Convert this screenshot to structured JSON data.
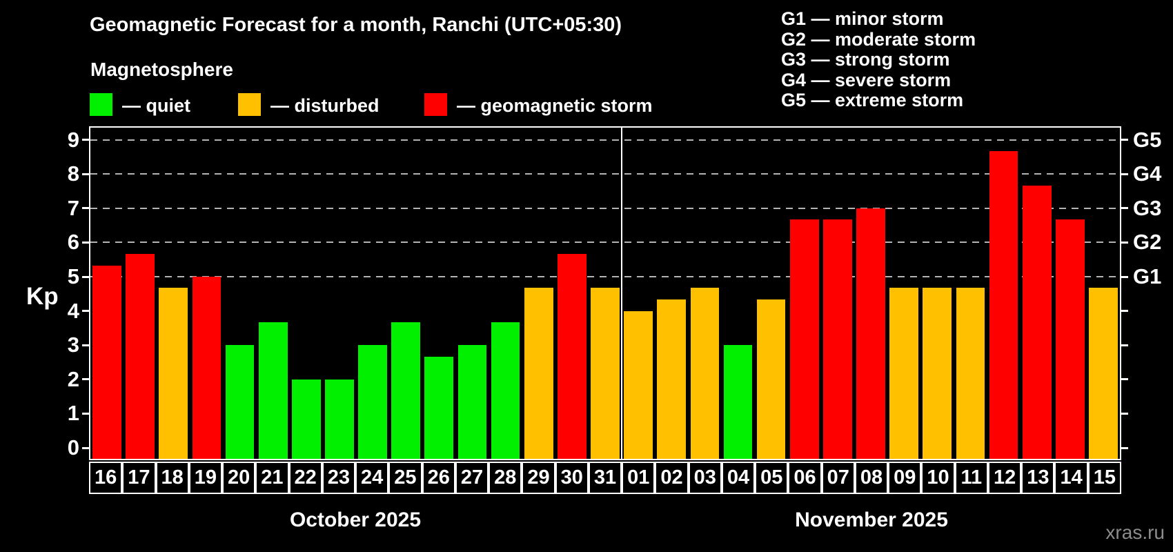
{
  "title": "Geomagnetic Forecast for a month, Ranchi (UTC+05:30)",
  "subtitle": "Magnetosphere",
  "watermark": "xras.ru",
  "legend": {
    "items": [
      {
        "status": "quiet",
        "label": "— quiet",
        "color": "#00f000"
      },
      {
        "status": "disturbed",
        "label": "— disturbed",
        "color": "#ffc000"
      },
      {
        "status": "storm",
        "label": "— geomagnetic storm",
        "color": "#ff0000"
      }
    ]
  },
  "g_legend": [
    {
      "code": "G1",
      "desc": "minor storm"
    },
    {
      "code": "G2",
      "desc": "moderate storm"
    },
    {
      "code": "G3",
      "desc": "strong storm"
    },
    {
      "code": "G4",
      "desc": "severe storm"
    },
    {
      "code": "G5",
      "desc": "extreme storm"
    }
  ],
  "chart_data": {
    "type": "bar",
    "title": "Geomagnetic Forecast for a month, Ranchi (UTC+05:30)",
    "ylabel": "Kp",
    "ylim": [
      0,
      9
    ],
    "yticks": [
      0,
      1,
      2,
      3,
      4,
      5,
      6,
      7,
      8,
      9
    ],
    "gridlines_kp": [
      5,
      6,
      7,
      8,
      9
    ],
    "grid": "dashed horizontal at storm levels only",
    "legend_position": "top-left",
    "status_colors": {
      "quiet": "#00f000",
      "disturbed": "#ffc000",
      "storm": "#ff0000"
    },
    "right_axis_labels": [
      {
        "label": "G1",
        "kp": 5
      },
      {
        "label": "G2",
        "kp": 6
      },
      {
        "label": "G3",
        "kp": 7
      },
      {
        "label": "G4",
        "kp": 8
      },
      {
        "label": "G5",
        "kp": 9
      }
    ],
    "months": [
      {
        "label": "October 2025",
        "days": [
          {
            "day": "16",
            "kp": 5.33,
            "status": "storm"
          },
          {
            "day": "17",
            "kp": 5.67,
            "status": "storm"
          },
          {
            "day": "18",
            "kp": 4.67,
            "status": "disturbed"
          },
          {
            "day": "19",
            "kp": 5.0,
            "status": "storm"
          },
          {
            "day": "20",
            "kp": 3.0,
            "status": "quiet"
          },
          {
            "day": "21",
            "kp": 3.67,
            "status": "quiet"
          },
          {
            "day": "22",
            "kp": 2.0,
            "status": "quiet"
          },
          {
            "day": "23",
            "kp": 2.0,
            "status": "quiet"
          },
          {
            "day": "24",
            "kp": 3.0,
            "status": "quiet"
          },
          {
            "day": "25",
            "kp": 3.67,
            "status": "quiet"
          },
          {
            "day": "26",
            "kp": 2.67,
            "status": "quiet"
          },
          {
            "day": "27",
            "kp": 3.0,
            "status": "quiet"
          },
          {
            "day": "28",
            "kp": 3.67,
            "status": "quiet"
          },
          {
            "day": "29",
            "kp": 4.67,
            "status": "disturbed"
          },
          {
            "day": "30",
            "kp": 5.67,
            "status": "storm"
          },
          {
            "day": "31",
            "kp": 4.67,
            "status": "disturbed"
          }
        ]
      },
      {
        "label": "November 2025",
        "days": [
          {
            "day": "01",
            "kp": 4.0,
            "status": "disturbed"
          },
          {
            "day": "02",
            "kp": 4.33,
            "status": "disturbed"
          },
          {
            "day": "03",
            "kp": 4.67,
            "status": "disturbed"
          },
          {
            "day": "04",
            "kp": 3.0,
            "status": "quiet"
          },
          {
            "day": "05",
            "kp": 4.33,
            "status": "disturbed"
          },
          {
            "day": "06",
            "kp": 6.67,
            "status": "storm"
          },
          {
            "day": "07",
            "kp": 6.67,
            "status": "storm"
          },
          {
            "day": "08",
            "kp": 7.0,
            "status": "storm"
          },
          {
            "day": "09",
            "kp": 4.67,
            "status": "disturbed"
          },
          {
            "day": "10",
            "kp": 4.67,
            "status": "disturbed"
          },
          {
            "day": "11",
            "kp": 4.67,
            "status": "disturbed"
          },
          {
            "day": "12",
            "kp": 8.67,
            "status": "storm"
          },
          {
            "day": "13",
            "kp": 7.67,
            "status": "storm"
          },
          {
            "day": "14",
            "kp": 6.67,
            "status": "storm"
          },
          {
            "day": "15",
            "kp": 4.67,
            "status": "disturbed"
          }
        ]
      }
    ]
  }
}
